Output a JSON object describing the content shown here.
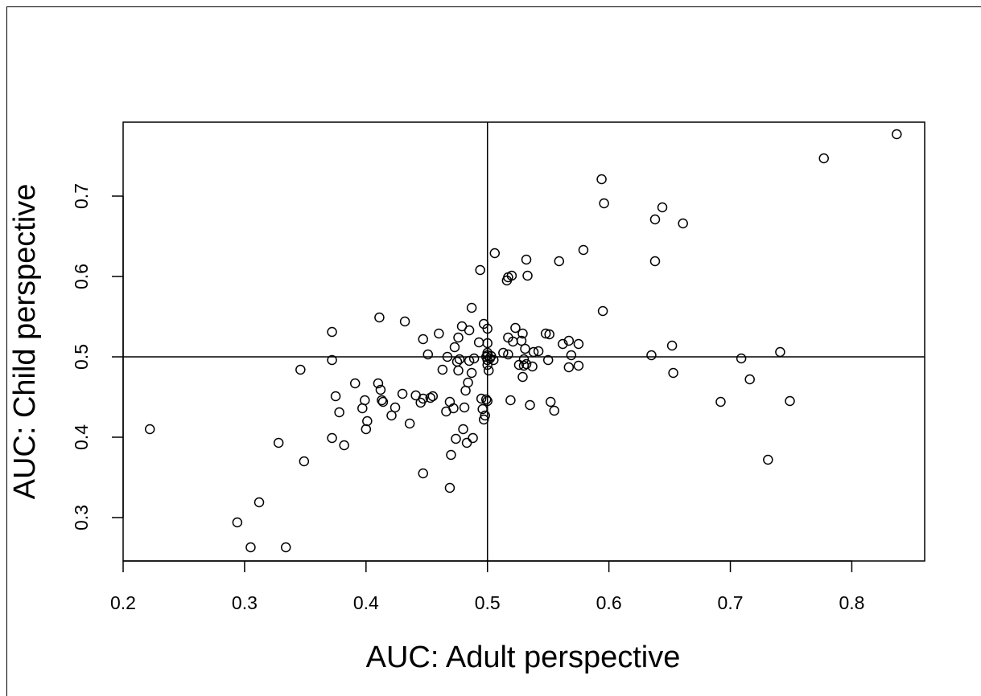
{
  "chart_data": {
    "type": "scatter",
    "title": "",
    "xlabel": "AUC: Adult perspective",
    "ylabel": "AUC: Child perspective",
    "xlim": [
      0.2,
      0.86
    ],
    "ylim": [
      0.246,
      0.792
    ],
    "x_ticks": [
      0.2,
      0.3,
      0.4,
      0.5,
      0.6,
      0.7,
      0.8
    ],
    "x_tick_labels": [
      "0.2",
      "0.3",
      "0.4",
      "0.5",
      "0.6",
      "0.7",
      "0.8"
    ],
    "y_ticks": [
      0.3,
      0.4,
      0.5,
      0.6,
      0.7
    ],
    "y_tick_labels": [
      "0.3",
      "0.4",
      "0.5",
      "0.6",
      "0.7"
    ],
    "reference_lines": {
      "x": 0.5,
      "y": 0.5
    },
    "grid": false,
    "marker": "open-circle",
    "points": [
      [
        0.222,
        0.41
      ],
      [
        0.294,
        0.294
      ],
      [
        0.305,
        0.263
      ],
      [
        0.312,
        0.319
      ],
      [
        0.334,
        0.263
      ],
      [
        0.328,
        0.393
      ],
      [
        0.349,
        0.37
      ],
      [
        0.346,
        0.484
      ],
      [
        0.372,
        0.399
      ],
      [
        0.372,
        0.531
      ],
      [
        0.372,
        0.496
      ],
      [
        0.375,
        0.451
      ],
      [
        0.378,
        0.431
      ],
      [
        0.382,
        0.39
      ],
      [
        0.391,
        0.467
      ],
      [
        0.397,
        0.436
      ],
      [
        0.399,
        0.446
      ],
      [
        0.4,
        0.41
      ],
      [
        0.401,
        0.42
      ],
      [
        0.41,
        0.467
      ],
      [
        0.411,
        0.549
      ],
      [
        0.412,
        0.459
      ],
      [
        0.413,
        0.446
      ],
      [
        0.414,
        0.444
      ],
      [
        0.421,
        0.427
      ],
      [
        0.424,
        0.437
      ],
      [
        0.43,
        0.454
      ],
      [
        0.432,
        0.544
      ],
      [
        0.436,
        0.417
      ],
      [
        0.441,
        0.452
      ],
      [
        0.445,
        0.443
      ],
      [
        0.447,
        0.448
      ],
      [
        0.447,
        0.522
      ],
      [
        0.447,
        0.355
      ],
      [
        0.451,
        0.503
      ],
      [
        0.453,
        0.449
      ],
      [
        0.455,
        0.451
      ],
      [
        0.46,
        0.529
      ],
      [
        0.463,
        0.484
      ],
      [
        0.466,
        0.432
      ],
      [
        0.467,
        0.5
      ],
      [
        0.469,
        0.337
      ],
      [
        0.469,
        0.444
      ],
      [
        0.47,
        0.378
      ],
      [
        0.472,
        0.436
      ],
      [
        0.473,
        0.512
      ],
      [
        0.474,
        0.398
      ],
      [
        0.475,
        0.494
      ],
      [
        0.476,
        0.524
      ],
      [
        0.476,
        0.483
      ],
      [
        0.477,
        0.497
      ],
      [
        0.479,
        0.538
      ],
      [
        0.48,
        0.41
      ],
      [
        0.481,
        0.437
      ],
      [
        0.482,
        0.458
      ],
      [
        0.483,
        0.393
      ],
      [
        0.484,
        0.468
      ],
      [
        0.485,
        0.533
      ],
      [
        0.485,
        0.495
      ],
      [
        0.487,
        0.561
      ],
      [
        0.487,
        0.48
      ],
      [
        0.488,
        0.399
      ],
      [
        0.489,
        0.498
      ],
      [
        0.493,
        0.518
      ],
      [
        0.494,
        0.608
      ],
      [
        0.495,
        0.448
      ],
      [
        0.496,
        0.435
      ],
      [
        0.497,
        0.541
      ],
      [
        0.497,
        0.422
      ],
      [
        0.498,
        0.427
      ],
      [
        0.499,
        0.447
      ],
      [
        0.499,
        0.5
      ],
      [
        0.5,
        0.496
      ],
      [
        0.5,
        0.502
      ],
      [
        0.5,
        0.517
      ],
      [
        0.5,
        0.535
      ],
      [
        0.5,
        0.445
      ],
      [
        0.5,
        0.49
      ],
      [
        0.5,
        0.505
      ],
      [
        0.501,
        0.483
      ],
      [
        0.502,
        0.498
      ],
      [
        0.503,
        0.501
      ],
      [
        0.505,
        0.496
      ],
      [
        0.506,
        0.629
      ],
      [
        0.513,
        0.505
      ],
      [
        0.516,
        0.595
      ],
      [
        0.517,
        0.524
      ],
      [
        0.517,
        0.503
      ],
      [
        0.517,
        0.599
      ],
      [
        0.519,
        0.446
      ],
      [
        0.52,
        0.601
      ],
      [
        0.521,
        0.519
      ],
      [
        0.523,
        0.536
      ],
      [
        0.526,
        0.49
      ],
      [
        0.528,
        0.52
      ],
      [
        0.529,
        0.529
      ],
      [
        0.529,
        0.475
      ],
      [
        0.53,
        0.497
      ],
      [
        0.53,
        0.489
      ],
      [
        0.531,
        0.51
      ],
      [
        0.532,
        0.491
      ],
      [
        0.532,
        0.621
      ],
      [
        0.533,
        0.601
      ],
      [
        0.535,
        0.44
      ],
      [
        0.537,
        0.488
      ],
      [
        0.538,
        0.506
      ],
      [
        0.542,
        0.507
      ],
      [
        0.548,
        0.529
      ],
      [
        0.55,
        0.496
      ],
      [
        0.551,
        0.528
      ],
      [
        0.552,
        0.444
      ],
      [
        0.555,
        0.433
      ],
      [
        0.559,
        0.619
      ],
      [
        0.562,
        0.516
      ],
      [
        0.567,
        0.487
      ],
      [
        0.567,
        0.52
      ],
      [
        0.569,
        0.502
      ],
      [
        0.575,
        0.489
      ],
      [
        0.575,
        0.516
      ],
      [
        0.579,
        0.633
      ],
      [
        0.594,
        0.721
      ],
      [
        0.595,
        0.557
      ],
      [
        0.596,
        0.691
      ],
      [
        0.635,
        0.502
      ],
      [
        0.638,
        0.671
      ],
      [
        0.638,
        0.619
      ],
      [
        0.644,
        0.686
      ],
      [
        0.652,
        0.514
      ],
      [
        0.653,
        0.48
      ],
      [
        0.661,
        0.666
      ],
      [
        0.692,
        0.444
      ],
      [
        0.709,
        0.498
      ],
      [
        0.716,
        0.472
      ],
      [
        0.731,
        0.372
      ],
      [
        0.741,
        0.506
      ],
      [
        0.749,
        0.445
      ],
      [
        0.777,
        0.747
      ],
      [
        0.837,
        0.777
      ]
    ]
  }
}
